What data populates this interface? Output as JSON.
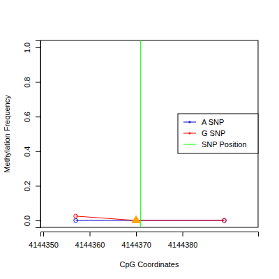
{
  "chart_data": {
    "type": "line",
    "x_label": "CpG Coordinates",
    "y_label": "Methylation Frequency",
    "xlim": [
      4144349.4,
      4144396.3
    ],
    "xticks": [
      4144350,
      4144360,
      4144370,
      4144380
    ],
    "ylim": [
      -0.04,
      1.04
    ],
    "yticks": [
      {
        "value": 0,
        "label": "0.0"
      },
      {
        "value": 0.2,
        "label": "0.2"
      },
      {
        "value": 0.4,
        "label": "0.4"
      },
      {
        "value": 0.6,
        "label": "0.6"
      },
      {
        "value": 0.8,
        "label": "0.8"
      },
      {
        "value": 1,
        "label": "1.0"
      }
    ],
    "legend": "right",
    "series": [
      {
        "name": "A SNP",
        "color": "#0000cd",
        "marker": "circle",
        "x": [
          4144357,
          4144370,
          4144389
        ],
        "values": [
          0,
          0,
          0
        ]
      },
      {
        "name": "G SNP",
        "color": "#ff0000",
        "marker": "circle",
        "x": [
          4144357,
          4144370,
          4144389
        ],
        "values": [
          0.025,
          0,
          0
        ]
      },
      {
        "name": "SNP Position",
        "color": "#00ff00",
        "type": "vline",
        "x": [
          4144371
        ]
      }
    ],
    "highlight": {
      "x": 4144370,
      "y": 0,
      "color": "#ffa500",
      "marker": "triangle"
    }
  }
}
